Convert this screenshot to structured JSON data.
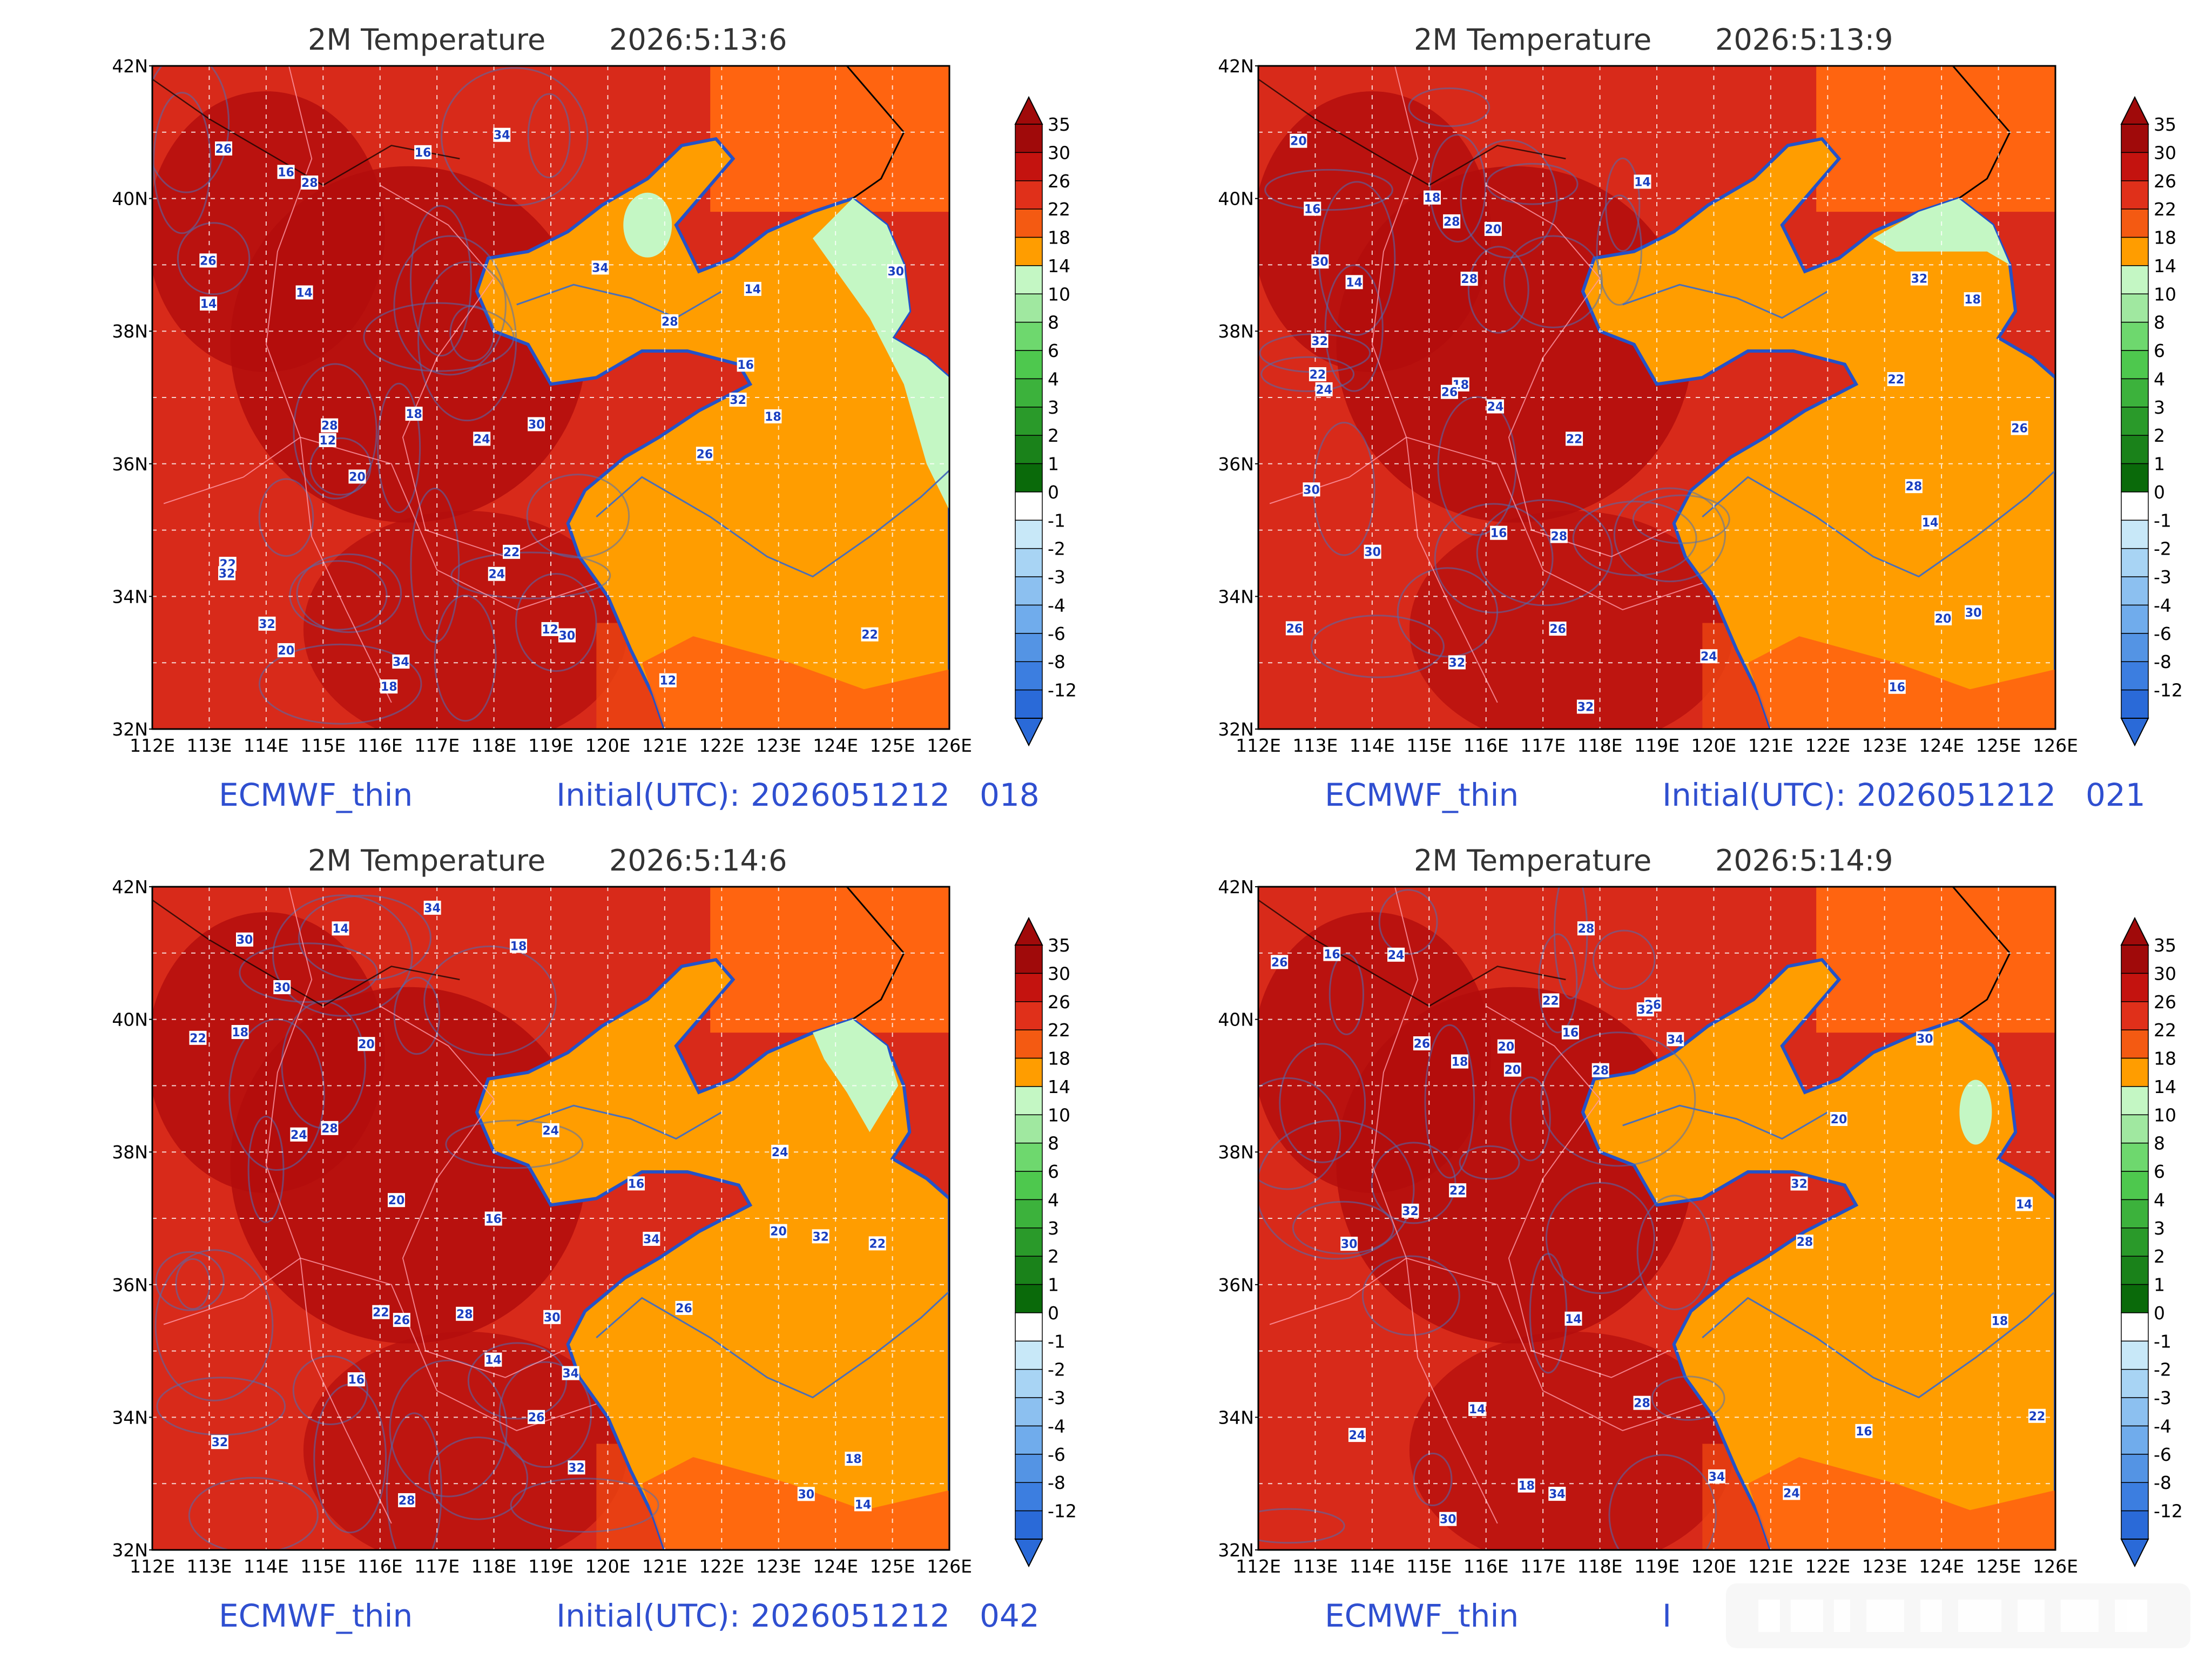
{
  "colors": {
    "deep_red": "#b30d0d",
    "red": "#d82a1a",
    "red_orange": "#ec4512",
    "orange_red": "#ff6410",
    "orange": "#ff9d00",
    "light_green": "#c4f7c4",
    "coast_blue": "#2452c8",
    "contour": "#4a6fb8",
    "grid_white": "#ffffff",
    "footer_blue": "#2f4fd0"
  },
  "axes": {
    "lat_labels": [
      "42N",
      "40N",
      "38N",
      "36N",
      "34N",
      "32N"
    ],
    "lon_labels": [
      "112E",
      "113E",
      "114E",
      "115E",
      "116E",
      "117E",
      "118E",
      "119E",
      "120E",
      "121E",
      "122E",
      "123E",
      "124E",
      "125E",
      "126E"
    ]
  },
  "colorbar": {
    "levels": [
      "35",
      "30",
      "26",
      "22",
      "18",
      "14",
      "10",
      "8",
      "6",
      "4",
      "3",
      "2",
      "1",
      "0",
      "-1",
      "-2",
      "-3",
      "-4",
      "-6",
      "-8",
      "-12"
    ],
    "colors": [
      "#a00a0a",
      "#c4130f",
      "#e0301a",
      "#f45a12",
      "#ff9d00",
      "#c4f7c4",
      "#a0e8a0",
      "#6ed86e",
      "#4ec84e",
      "#3cb23c",
      "#2a9a2a",
      "#1a821a",
      "#0a6a0a",
      "#ffffff",
      "#c8e8f8",
      "#a8d4f4",
      "#8cc0f0",
      "#70acec",
      "#5494e4",
      "#3c7ee0",
      "#2a6ad8"
    ]
  },
  "panels": [
    {
      "title": "2M Temperature",
      "time": "2026:5:13:6",
      "model": "ECMWF_thin",
      "initial": "Initial(UTC):",
      "init_time": "2026051212",
      "forecast": "018",
      "labels": [
        "32",
        "30",
        "28",
        "34",
        "26",
        "22",
        "18",
        "16",
        "14",
        "12",
        "24",
        "20"
      ]
    },
    {
      "title": "2M Temperature",
      "time": "2026:5:13:9",
      "model": "ECMWF_thin",
      "initial": "Initial(UTC):",
      "init_time": "2026051212",
      "forecast": "021",
      "labels": [
        "32",
        "30",
        "28",
        "26",
        "24",
        "22",
        "20",
        "18",
        "16",
        "14"
      ]
    },
    {
      "title": "2M Temperature",
      "time": "2026:5:14:6",
      "model": "ECMWF_thin",
      "initial": "Initial(UTC):",
      "init_time": "2026051212",
      "forecast": "042",
      "labels": [
        "30",
        "28",
        "32",
        "26",
        "34",
        "24",
        "22",
        "20",
        "18",
        "16",
        "14"
      ]
    },
    {
      "title": "2M Temperature",
      "time": "2026:5:14:9",
      "model": "ECMWF_thin",
      "initial": "I",
      "init_time": "",
      "forecast": "",
      "labels": [
        "28",
        "26",
        "24",
        "22",
        "30",
        "32",
        "34",
        "20",
        "18",
        "16",
        "14"
      ]
    }
  ]
}
